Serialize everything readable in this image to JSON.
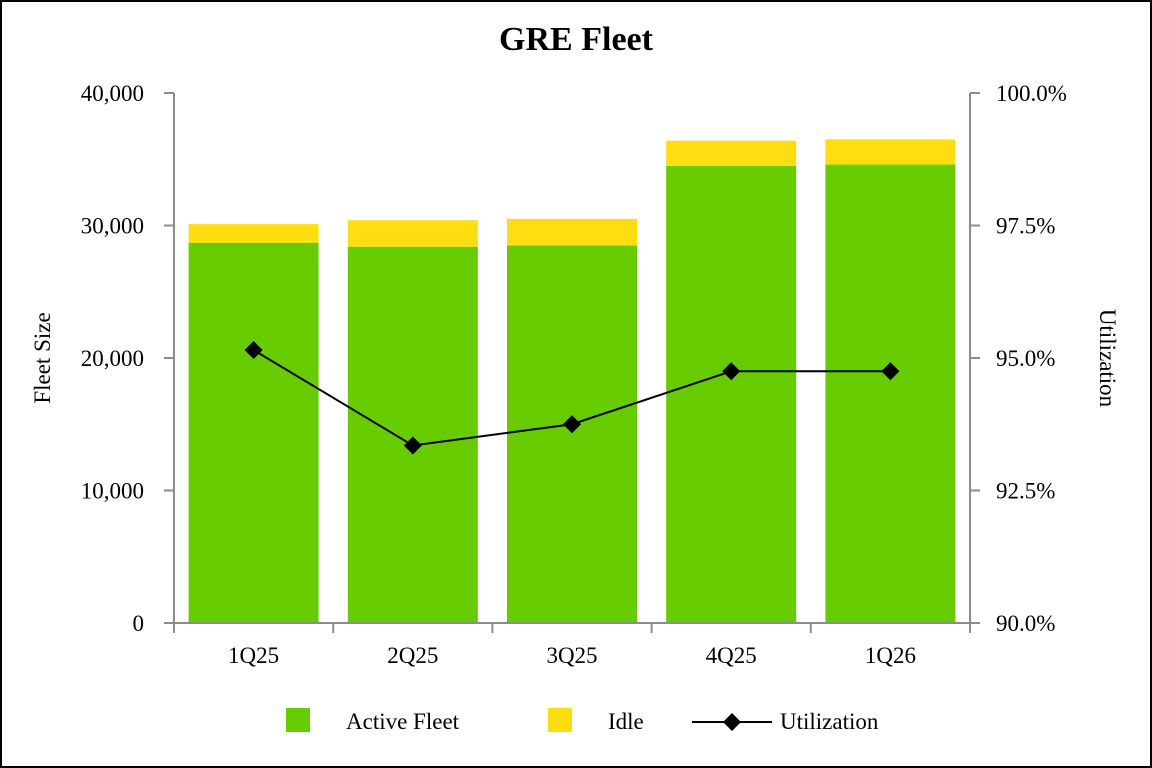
{
  "chart_data": {
    "type": "bar",
    "title": "GRE Fleet",
    "ylabel": "Fleet Size",
    "y2label": "Utilization",
    "categories": [
      "1Q25",
      "2Q25",
      "3Q25",
      "4Q25",
      "1Q26"
    ],
    "ylim": [
      0,
      40000
    ],
    "y2lim": [
      90.0,
      100.0
    ],
    "yticks": [
      0,
      10000,
      20000,
      30000,
      40000
    ],
    "ytick_labels": [
      "0",
      "10,000",
      "20,000",
      "30,000",
      "40,000"
    ],
    "y2ticks": [
      90.0,
      92.5,
      95.0,
      97.5,
      100.0
    ],
    "y2tick_labels": [
      "90.0%",
      "92.5%",
      "95.0%",
      "97.5%",
      "100.0%"
    ],
    "stacked": true,
    "series": [
      {
        "name": "Active Fleet",
        "kind": "bar",
        "axis": "left",
        "color": "#66CC00",
        "values": [
          28700,
          28400,
          28500,
          34500,
          34600
        ]
      },
      {
        "name": "Idle",
        "kind": "bar",
        "axis": "left",
        "color": "#FFDD11",
        "values": [
          1400,
          2000,
          2000,
          1900,
          1900
        ]
      },
      {
        "name": "Utilization",
        "kind": "line",
        "axis": "right",
        "color": "#000000",
        "marker": "diamond",
        "values": [
          95.15,
          93.35,
          93.75,
          94.75,
          94.75
        ]
      }
    ],
    "grid": false,
    "legend_position": "bottom"
  }
}
